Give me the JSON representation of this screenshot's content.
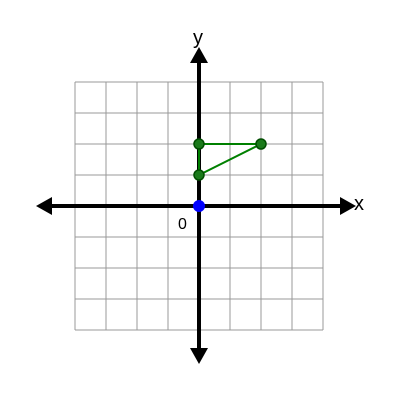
{
  "diagram": {
    "x_axis_label": "x",
    "y_axis_label": "y",
    "origin_label": "0",
    "grid": {
      "x_range": [
        -4,
        4
      ],
      "y_range": [
        -4,
        4
      ],
      "step": 1
    },
    "origin_point": {
      "x": 0,
      "y": 0,
      "color": "#0000ff"
    },
    "triangle": {
      "color": "#008000",
      "vertices": [
        {
          "x": 0,
          "y": 2
        },
        {
          "x": 2,
          "y": 2
        },
        {
          "x": 0,
          "y": 1
        }
      ]
    }
  },
  "colors": {
    "grid": "#999999",
    "axes": "#000000",
    "triangle": "#008000",
    "origin_point": "#0000ff"
  }
}
